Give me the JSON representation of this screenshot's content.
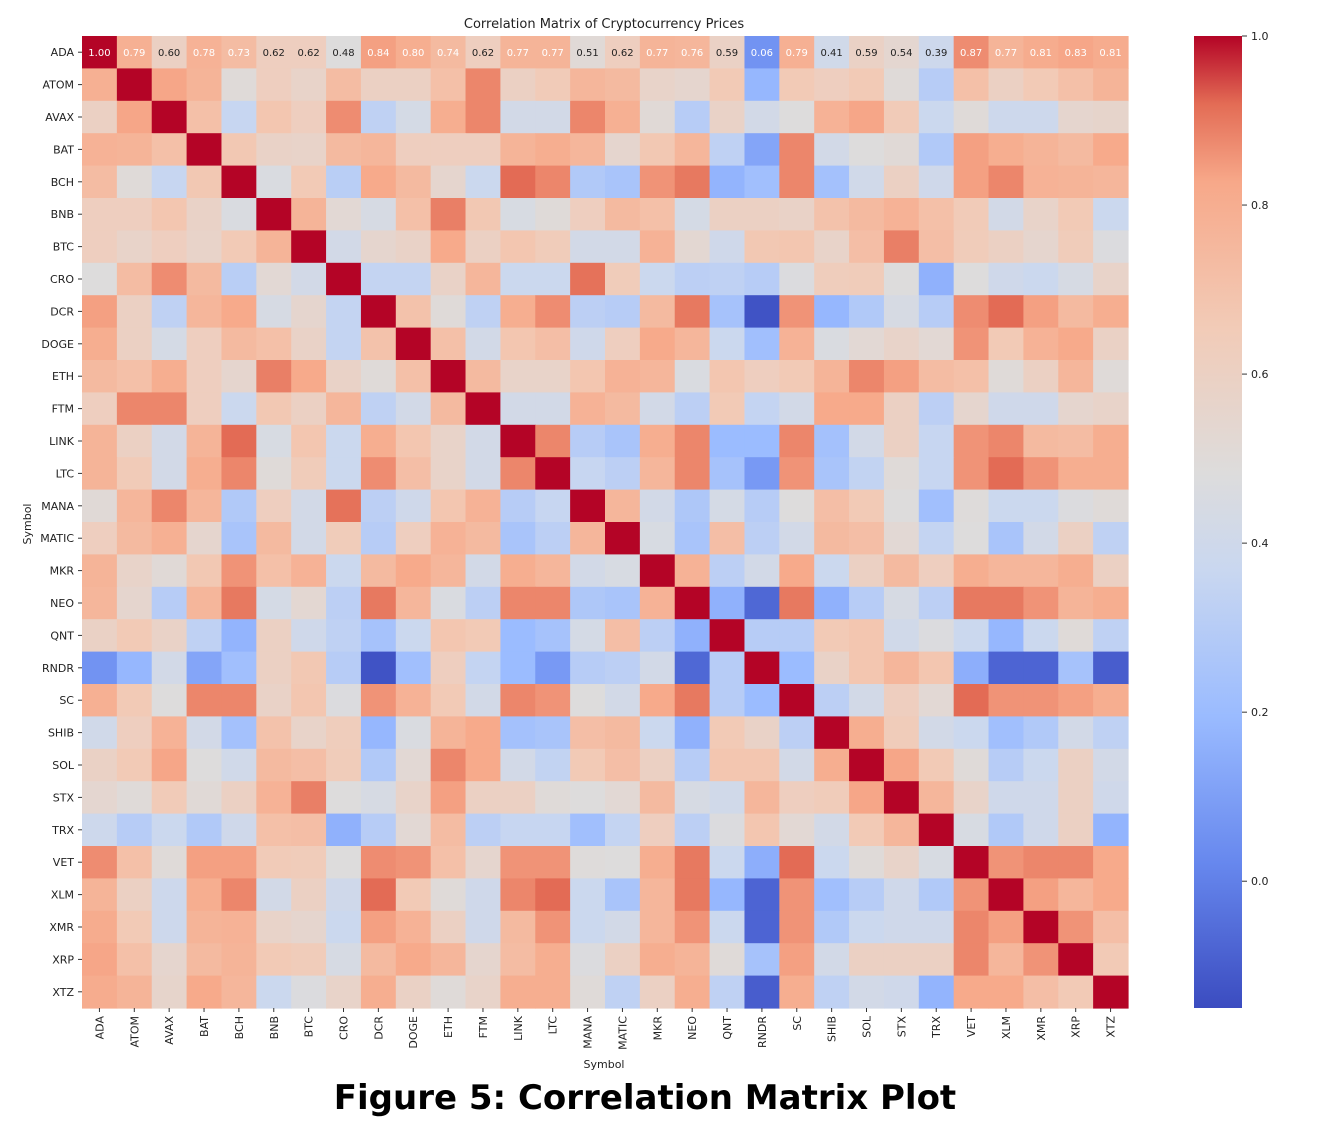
{
  "caption": "Figure 5: Correlation Matrix Plot",
  "chart_data": {
    "type": "heatmap",
    "title": "Correlation Matrix of Cryptocurrency Prices",
    "xlabel": "Symbol",
    "ylabel": "Symbol",
    "colormap": "coolwarm",
    "colors": {
      "low": "#3b4cc0",
      "mid": "#dddcdc",
      "high": "#b40426"
    },
    "vmin": -0.15,
    "vmax": 1.0,
    "colorbar_ticks": [
      "0.0",
      "0.2",
      "0.4",
      "0.6",
      "0.8",
      "1.0"
    ],
    "colorbar_tick_values": [
      0.0,
      0.2,
      0.4,
      0.6,
      0.8,
      1.0
    ],
    "annotated_rows": [
      0
    ],
    "labels": [
      "ADA",
      "ATOM",
      "AVAX",
      "BAT",
      "BCH",
      "BNB",
      "BTC",
      "CRO",
      "DCR",
      "DOGE",
      "ETH",
      "FTM",
      "LINK",
      "LTC",
      "MANA",
      "MATIC",
      "MKR",
      "NEO",
      "QNT",
      "RNDR",
      "SC",
      "SHIB",
      "SOL",
      "STX",
      "TRX",
      "VET",
      "XLM",
      "XMR",
      "XRP",
      "XTZ"
    ],
    "matrix": [
      [
        1.0,
        0.79,
        0.6,
        0.78,
        0.73,
        0.62,
        0.62,
        0.48,
        0.84,
        0.8,
        0.74,
        0.62,
        0.77,
        0.77,
        0.51,
        0.62,
        0.77,
        0.76,
        0.59,
        0.06,
        0.79,
        0.41,
        0.59,
        0.54,
        0.39,
        0.87,
        0.77,
        0.81,
        0.83,
        0.81
      ],
      [
        0.79,
        1.0,
        0.83,
        0.77,
        0.5,
        0.62,
        0.57,
        0.73,
        0.6,
        0.6,
        0.71,
        0.88,
        0.6,
        0.65,
        0.76,
        0.74,
        0.57,
        0.55,
        0.66,
        0.18,
        0.66,
        0.62,
        0.66,
        0.5,
        0.3,
        0.71,
        0.6,
        0.66,
        0.71,
        0.77
      ],
      [
        0.6,
        0.83,
        1.0,
        0.71,
        0.36,
        0.68,
        0.62,
        0.87,
        0.33,
        0.43,
        0.8,
        0.88,
        0.42,
        0.42,
        0.88,
        0.79,
        0.51,
        0.3,
        0.58,
        0.42,
        0.48,
        0.78,
        0.83,
        0.65,
        0.38,
        0.5,
        0.39,
        0.39,
        0.55,
        0.56
      ],
      [
        0.78,
        0.77,
        0.71,
        1.0,
        0.67,
        0.58,
        0.57,
        0.74,
        0.76,
        0.62,
        0.62,
        0.62,
        0.77,
        0.8,
        0.76,
        0.55,
        0.67,
        0.76,
        0.33,
        0.12,
        0.88,
        0.42,
        0.48,
        0.51,
        0.28,
        0.84,
        0.8,
        0.77,
        0.74,
        0.82
      ],
      [
        0.73,
        0.5,
        0.36,
        0.67,
        1.0,
        0.46,
        0.66,
        0.31,
        0.82,
        0.74,
        0.55,
        0.38,
        0.92,
        0.88,
        0.28,
        0.25,
        0.86,
        0.9,
        0.17,
        0.22,
        0.88,
        0.23,
        0.41,
        0.6,
        0.4,
        0.84,
        0.88,
        0.78,
        0.77,
        0.76
      ],
      [
        0.62,
        0.62,
        0.68,
        0.58,
        0.46,
        1.0,
        0.77,
        0.52,
        0.44,
        0.71,
        0.89,
        0.67,
        0.45,
        0.5,
        0.62,
        0.74,
        0.71,
        0.43,
        0.6,
        0.6,
        0.58,
        0.7,
        0.74,
        0.78,
        0.71,
        0.65,
        0.42,
        0.57,
        0.66,
        0.38
      ],
      [
        0.62,
        0.57,
        0.62,
        0.57,
        0.66,
        0.77,
        1.0,
        0.42,
        0.55,
        0.58,
        0.82,
        0.6,
        0.68,
        0.64,
        0.42,
        0.42,
        0.78,
        0.53,
        0.4,
        0.67,
        0.68,
        0.57,
        0.72,
        0.89,
        0.72,
        0.64,
        0.6,
        0.55,
        0.64,
        0.47
      ],
      [
        0.48,
        0.73,
        0.87,
        0.74,
        0.31,
        0.52,
        0.42,
        1.0,
        0.35,
        0.35,
        0.58,
        0.76,
        0.38,
        0.38,
        0.91,
        0.64,
        0.38,
        0.32,
        0.33,
        0.3,
        0.47,
        0.63,
        0.64,
        0.48,
        0.16,
        0.48,
        0.4,
        0.38,
        0.44,
        0.57
      ],
      [
        0.84,
        0.6,
        0.33,
        0.76,
        0.82,
        0.44,
        0.55,
        0.35,
        1.0,
        0.7,
        0.5,
        0.33,
        0.8,
        0.87,
        0.32,
        0.3,
        0.74,
        0.9,
        0.24,
        -0.13,
        0.86,
        0.18,
        0.28,
        0.44,
        0.3,
        0.87,
        0.92,
        0.84,
        0.74,
        0.8
      ],
      [
        0.8,
        0.6,
        0.43,
        0.62,
        0.74,
        0.71,
        0.58,
        0.35,
        0.7,
        1.0,
        0.71,
        0.42,
        0.68,
        0.72,
        0.4,
        0.62,
        0.82,
        0.76,
        0.38,
        0.22,
        0.78,
        0.46,
        0.52,
        0.57,
        0.52,
        0.86,
        0.66,
        0.78,
        0.82,
        0.59
      ],
      [
        0.74,
        0.71,
        0.8,
        0.62,
        0.55,
        0.89,
        0.82,
        0.58,
        0.5,
        0.71,
        1.0,
        0.74,
        0.57,
        0.57,
        0.68,
        0.78,
        0.76,
        0.46,
        0.68,
        0.62,
        0.66,
        0.77,
        0.88,
        0.84,
        0.73,
        0.71,
        0.5,
        0.6,
        0.76,
        0.5
      ],
      [
        0.62,
        0.88,
        0.88,
        0.62,
        0.38,
        0.67,
        0.6,
        0.76,
        0.33,
        0.42,
        0.74,
        1.0,
        0.42,
        0.42,
        0.78,
        0.74,
        0.42,
        0.32,
        0.66,
        0.35,
        0.42,
        0.82,
        0.82,
        0.6,
        0.32,
        0.55,
        0.4,
        0.4,
        0.55,
        0.57
      ],
      [
        0.77,
        0.6,
        0.42,
        0.77,
        0.92,
        0.45,
        0.68,
        0.38,
        0.8,
        0.68,
        0.57,
        0.42,
        1.0,
        0.88,
        0.3,
        0.25,
        0.8,
        0.88,
        0.2,
        0.2,
        0.88,
        0.23,
        0.42,
        0.6,
        0.36,
        0.86,
        0.88,
        0.74,
        0.73,
        0.8
      ],
      [
        0.77,
        0.65,
        0.42,
        0.8,
        0.88,
        0.5,
        0.64,
        0.38,
        0.87,
        0.72,
        0.57,
        0.42,
        0.88,
        1.0,
        0.36,
        0.32,
        0.76,
        0.88,
        0.24,
        0.08,
        0.86,
        0.25,
        0.34,
        0.5,
        0.36,
        0.86,
        0.92,
        0.86,
        0.8,
        0.8
      ],
      [
        0.51,
        0.76,
        0.88,
        0.76,
        0.28,
        0.62,
        0.42,
        0.91,
        0.32,
        0.4,
        0.68,
        0.78,
        0.3,
        0.36,
        1.0,
        0.76,
        0.42,
        0.27,
        0.43,
        0.3,
        0.48,
        0.72,
        0.66,
        0.48,
        0.22,
        0.49,
        0.38,
        0.38,
        0.47,
        0.5
      ],
      [
        0.62,
        0.74,
        0.79,
        0.55,
        0.25,
        0.74,
        0.42,
        0.64,
        0.3,
        0.62,
        0.78,
        0.74,
        0.25,
        0.32,
        0.76,
        1.0,
        0.45,
        0.25,
        0.72,
        0.32,
        0.42,
        0.74,
        0.72,
        0.52,
        0.35,
        0.48,
        0.25,
        0.42,
        0.6,
        0.33
      ],
      [
        0.77,
        0.57,
        0.51,
        0.67,
        0.86,
        0.71,
        0.78,
        0.38,
        0.74,
        0.82,
        0.76,
        0.42,
        0.8,
        0.76,
        0.42,
        0.45,
        1.0,
        0.78,
        0.32,
        0.42,
        0.82,
        0.38,
        0.6,
        0.74,
        0.62,
        0.8,
        0.76,
        0.76,
        0.8,
        0.6
      ],
      [
        0.76,
        0.55,
        0.3,
        0.76,
        0.9,
        0.43,
        0.53,
        0.32,
        0.9,
        0.76,
        0.46,
        0.32,
        0.88,
        0.88,
        0.27,
        0.25,
        0.78,
        1.0,
        0.16,
        -0.07,
        0.9,
        0.16,
        0.3,
        0.44,
        0.32,
        0.9,
        0.9,
        0.86,
        0.77,
        0.8
      ],
      [
        0.59,
        0.66,
        0.58,
        0.33,
        0.17,
        0.6,
        0.4,
        0.33,
        0.24,
        0.38,
        0.68,
        0.66,
        0.2,
        0.24,
        0.43,
        0.72,
        0.32,
        0.16,
        1.0,
        0.3,
        0.3,
        0.66,
        0.68,
        0.41,
        0.47,
        0.38,
        0.18,
        0.38,
        0.5,
        0.33
      ],
      [
        0.06,
        0.18,
        0.42,
        0.12,
        0.22,
        0.6,
        0.67,
        0.3,
        -0.13,
        0.22,
        0.62,
        0.35,
        0.2,
        0.08,
        0.3,
        0.32,
        0.42,
        -0.07,
        0.3,
        1.0,
        0.2,
        0.58,
        0.68,
        0.76,
        0.68,
        0.15,
        -0.08,
        -0.08,
        0.24,
        -0.1
      ],
      [
        0.79,
        0.66,
        0.48,
        0.88,
        0.88,
        0.58,
        0.68,
        0.47,
        0.86,
        0.78,
        0.66,
        0.42,
        0.88,
        0.86,
        0.48,
        0.42,
        0.82,
        0.9,
        0.3,
        0.2,
        1.0,
        0.32,
        0.42,
        0.62,
        0.52,
        0.92,
        0.86,
        0.86,
        0.84,
        0.8
      ],
      [
        0.41,
        0.62,
        0.78,
        0.42,
        0.23,
        0.7,
        0.57,
        0.63,
        0.18,
        0.46,
        0.77,
        0.82,
        0.23,
        0.25,
        0.72,
        0.74,
        0.38,
        0.16,
        0.66,
        0.58,
        0.32,
        1.0,
        0.8,
        0.64,
        0.42,
        0.38,
        0.22,
        0.28,
        0.42,
        0.33
      ],
      [
        0.59,
        0.66,
        0.83,
        0.48,
        0.41,
        0.74,
        0.72,
        0.64,
        0.28,
        0.52,
        0.88,
        0.82,
        0.42,
        0.34,
        0.66,
        0.72,
        0.6,
        0.3,
        0.68,
        0.68,
        0.42,
        0.8,
        1.0,
        0.83,
        0.66,
        0.5,
        0.3,
        0.38,
        0.6,
        0.42
      ],
      [
        0.54,
        0.5,
        0.65,
        0.51,
        0.6,
        0.78,
        0.89,
        0.48,
        0.44,
        0.57,
        0.84,
        0.6,
        0.6,
        0.5,
        0.48,
        0.52,
        0.74,
        0.44,
        0.41,
        0.76,
        0.62,
        0.64,
        0.83,
        1.0,
        0.76,
        0.57,
        0.4,
        0.4,
        0.6,
        0.4
      ],
      [
        0.39,
        0.3,
        0.38,
        0.28,
        0.4,
        0.71,
        0.72,
        0.16,
        0.3,
        0.52,
        0.73,
        0.32,
        0.36,
        0.36,
        0.22,
        0.35,
        0.62,
        0.32,
        0.47,
        0.68,
        0.52,
        0.42,
        0.66,
        0.76,
        1.0,
        0.45,
        0.28,
        0.4,
        0.6,
        0.17
      ],
      [
        0.87,
        0.71,
        0.5,
        0.84,
        0.84,
        0.65,
        0.64,
        0.48,
        0.87,
        0.86,
        0.71,
        0.55,
        0.86,
        0.86,
        0.49,
        0.48,
        0.8,
        0.9,
        0.38,
        0.15,
        0.92,
        0.38,
        0.5,
        0.57,
        0.45,
        1.0,
        0.86,
        0.88,
        0.88,
        0.82
      ],
      [
        0.77,
        0.6,
        0.39,
        0.8,
        0.88,
        0.42,
        0.6,
        0.4,
        0.92,
        0.66,
        0.5,
        0.4,
        0.88,
        0.92,
        0.38,
        0.25,
        0.76,
        0.9,
        0.18,
        -0.08,
        0.86,
        0.22,
        0.3,
        0.4,
        0.28,
        0.86,
        1.0,
        0.84,
        0.76,
        0.82
      ],
      [
        0.81,
        0.66,
        0.39,
        0.77,
        0.78,
        0.57,
        0.55,
        0.38,
        0.84,
        0.78,
        0.6,
        0.4,
        0.74,
        0.86,
        0.38,
        0.42,
        0.76,
        0.86,
        0.38,
        -0.08,
        0.86,
        0.28,
        0.38,
        0.4,
        0.4,
        0.88,
        0.84,
        1.0,
        0.86,
        0.72
      ],
      [
        0.83,
        0.71,
        0.55,
        0.74,
        0.77,
        0.66,
        0.64,
        0.44,
        0.74,
        0.82,
        0.76,
        0.55,
        0.73,
        0.8,
        0.47,
        0.6,
        0.8,
        0.77,
        0.5,
        0.24,
        0.84,
        0.42,
        0.6,
        0.6,
        0.6,
        0.88,
        0.76,
        0.86,
        1.0,
        0.66
      ],
      [
        0.81,
        0.77,
        0.56,
        0.82,
        0.76,
        0.38,
        0.47,
        0.57,
        0.8,
        0.59,
        0.5,
        0.57,
        0.8,
        0.8,
        0.5,
        0.33,
        0.6,
        0.8,
        0.33,
        -0.1,
        0.8,
        0.33,
        0.42,
        0.4,
        0.17,
        0.82,
        0.82,
        0.72,
        0.66,
        1.0
      ]
    ]
  }
}
